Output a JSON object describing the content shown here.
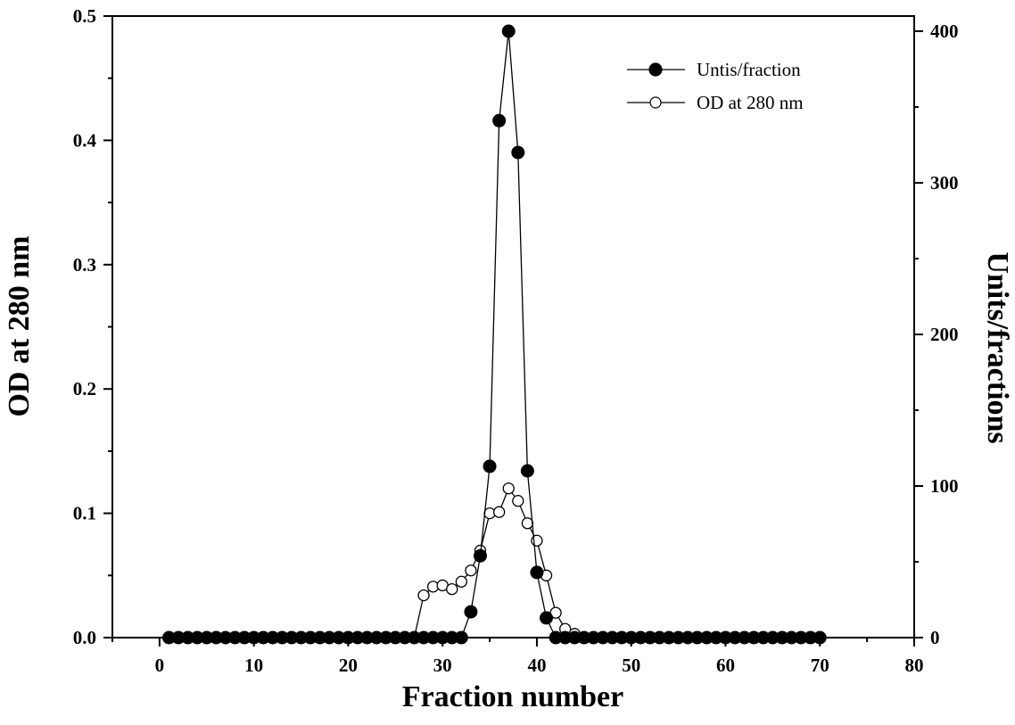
{
  "chart_data": {
    "type": "line",
    "x_label": "Fraction number",
    "y_label_left": "OD at 280 nm",
    "y_label_right": "Units/fractions",
    "xlim": [
      -5,
      80
    ],
    "ylim_left": [
      0,
      0.5
    ],
    "ylim_right": [
      0,
      410
    ],
    "x_ticks": [
      0,
      10,
      20,
      30,
      40,
      50,
      60,
      70,
      80
    ],
    "y_ticks_left": [
      "0.0",
      "0.1",
      "0.2",
      "0.3",
      "0.4",
      "0.5"
    ],
    "y_ticks_right": [
      "0",
      "100",
      "200",
      "300",
      "400"
    ],
    "legend_position": "top-right",
    "series": [
      {
        "name": "Untis/fraction",
        "axis": "right",
        "marker": "filled-circle",
        "x": [
          1,
          2,
          3,
          4,
          5,
          6,
          7,
          8,
          9,
          10,
          11,
          12,
          13,
          14,
          15,
          16,
          17,
          18,
          19,
          20,
          21,
          22,
          23,
          24,
          25,
          26,
          27,
          28,
          29,
          30,
          31,
          32,
          33,
          34,
          35,
          36,
          37,
          38,
          39,
          40,
          41,
          42,
          43,
          44,
          45,
          46,
          47,
          48,
          49,
          50,
          51,
          52,
          53,
          54,
          55,
          56,
          57,
          58,
          59,
          60,
          61,
          62,
          63,
          64,
          65,
          66,
          67,
          68,
          69,
          70
        ],
        "values": [
          0,
          0,
          0,
          0,
          0,
          0,
          0,
          0,
          0,
          0,
          0,
          0,
          0,
          0,
          0,
          0,
          0,
          0,
          0,
          0,
          0,
          0,
          0,
          0,
          0,
          0,
          0,
          0,
          0,
          0,
          0,
          0,
          17,
          54,
          113,
          341,
          400,
          320,
          110,
          43,
          13,
          0,
          0,
          0,
          0,
          0,
          0,
          0,
          0,
          0,
          0,
          0,
          0,
          0,
          0,
          0,
          0,
          0,
          0,
          0,
          0,
          0,
          0,
          0,
          0,
          0,
          0,
          0,
          0,
          0
        ]
      },
      {
        "name": "OD at 280 nm",
        "axis": "left",
        "marker": "open-circle",
        "x": [
          1,
          2,
          3,
          4,
          5,
          6,
          7,
          8,
          9,
          10,
          11,
          12,
          13,
          14,
          15,
          16,
          17,
          18,
          19,
          20,
          21,
          22,
          23,
          24,
          25,
          26,
          27,
          28,
          29,
          30,
          31,
          32,
          33,
          34,
          35,
          36,
          37,
          38,
          39,
          40,
          41,
          42,
          43,
          44,
          45,
          46,
          47,
          48,
          49,
          50,
          51,
          52,
          53,
          54,
          55,
          56,
          57,
          58,
          59,
          60,
          61,
          62,
          63,
          64,
          65,
          66,
          67,
          68,
          69,
          70
        ],
        "values": [
          0,
          0,
          0,
          0,
          0,
          0,
          0,
          0,
          0,
          0,
          0,
          0,
          0,
          0,
          0,
          0,
          0,
          0,
          0,
          0,
          0,
          0,
          0,
          0,
          0,
          0,
          0,
          0.034,
          0.041,
          0.042,
          0.039,
          0.045,
          0.054,
          0.07,
          0.1,
          0.101,
          0.12,
          0.11,
          0.092,
          0.078,
          0.05,
          0.02,
          0.007,
          0.003,
          0,
          0,
          0,
          0,
          0,
          0,
          0,
          0,
          0,
          0,
          0,
          0,
          0,
          0,
          0,
          0,
          0,
          0,
          0,
          0,
          0,
          0,
          0,
          0,
          0,
          0
        ]
      }
    ]
  }
}
